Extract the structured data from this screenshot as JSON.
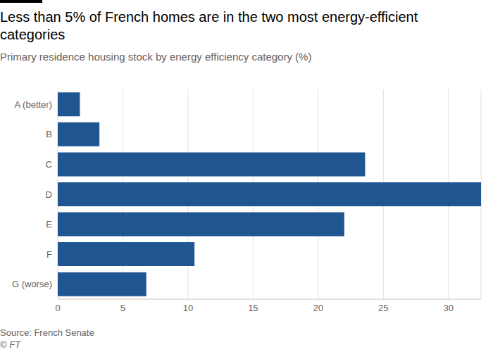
{
  "chart_data": {
    "type": "bar",
    "orientation": "horizontal",
    "title": "Less than 5% of French homes are in the two most energy-efficient categories",
    "subtitle": "Primary residence housing stock by energy efficiency category (%)",
    "source": "Source: French Senate",
    "credit": "© FT",
    "categories": [
      "A (better)",
      "B",
      "C",
      "D",
      "E",
      "F",
      "G (worse)"
    ],
    "values": [
      1.7,
      3.2,
      23.6,
      32.5,
      22.0,
      10.5,
      6.8
    ],
    "color": "#1f5591",
    "xlim": [
      0,
      32.5
    ],
    "xticks": [
      0,
      5,
      10,
      15,
      20,
      25,
      30
    ],
    "grid": true
  }
}
